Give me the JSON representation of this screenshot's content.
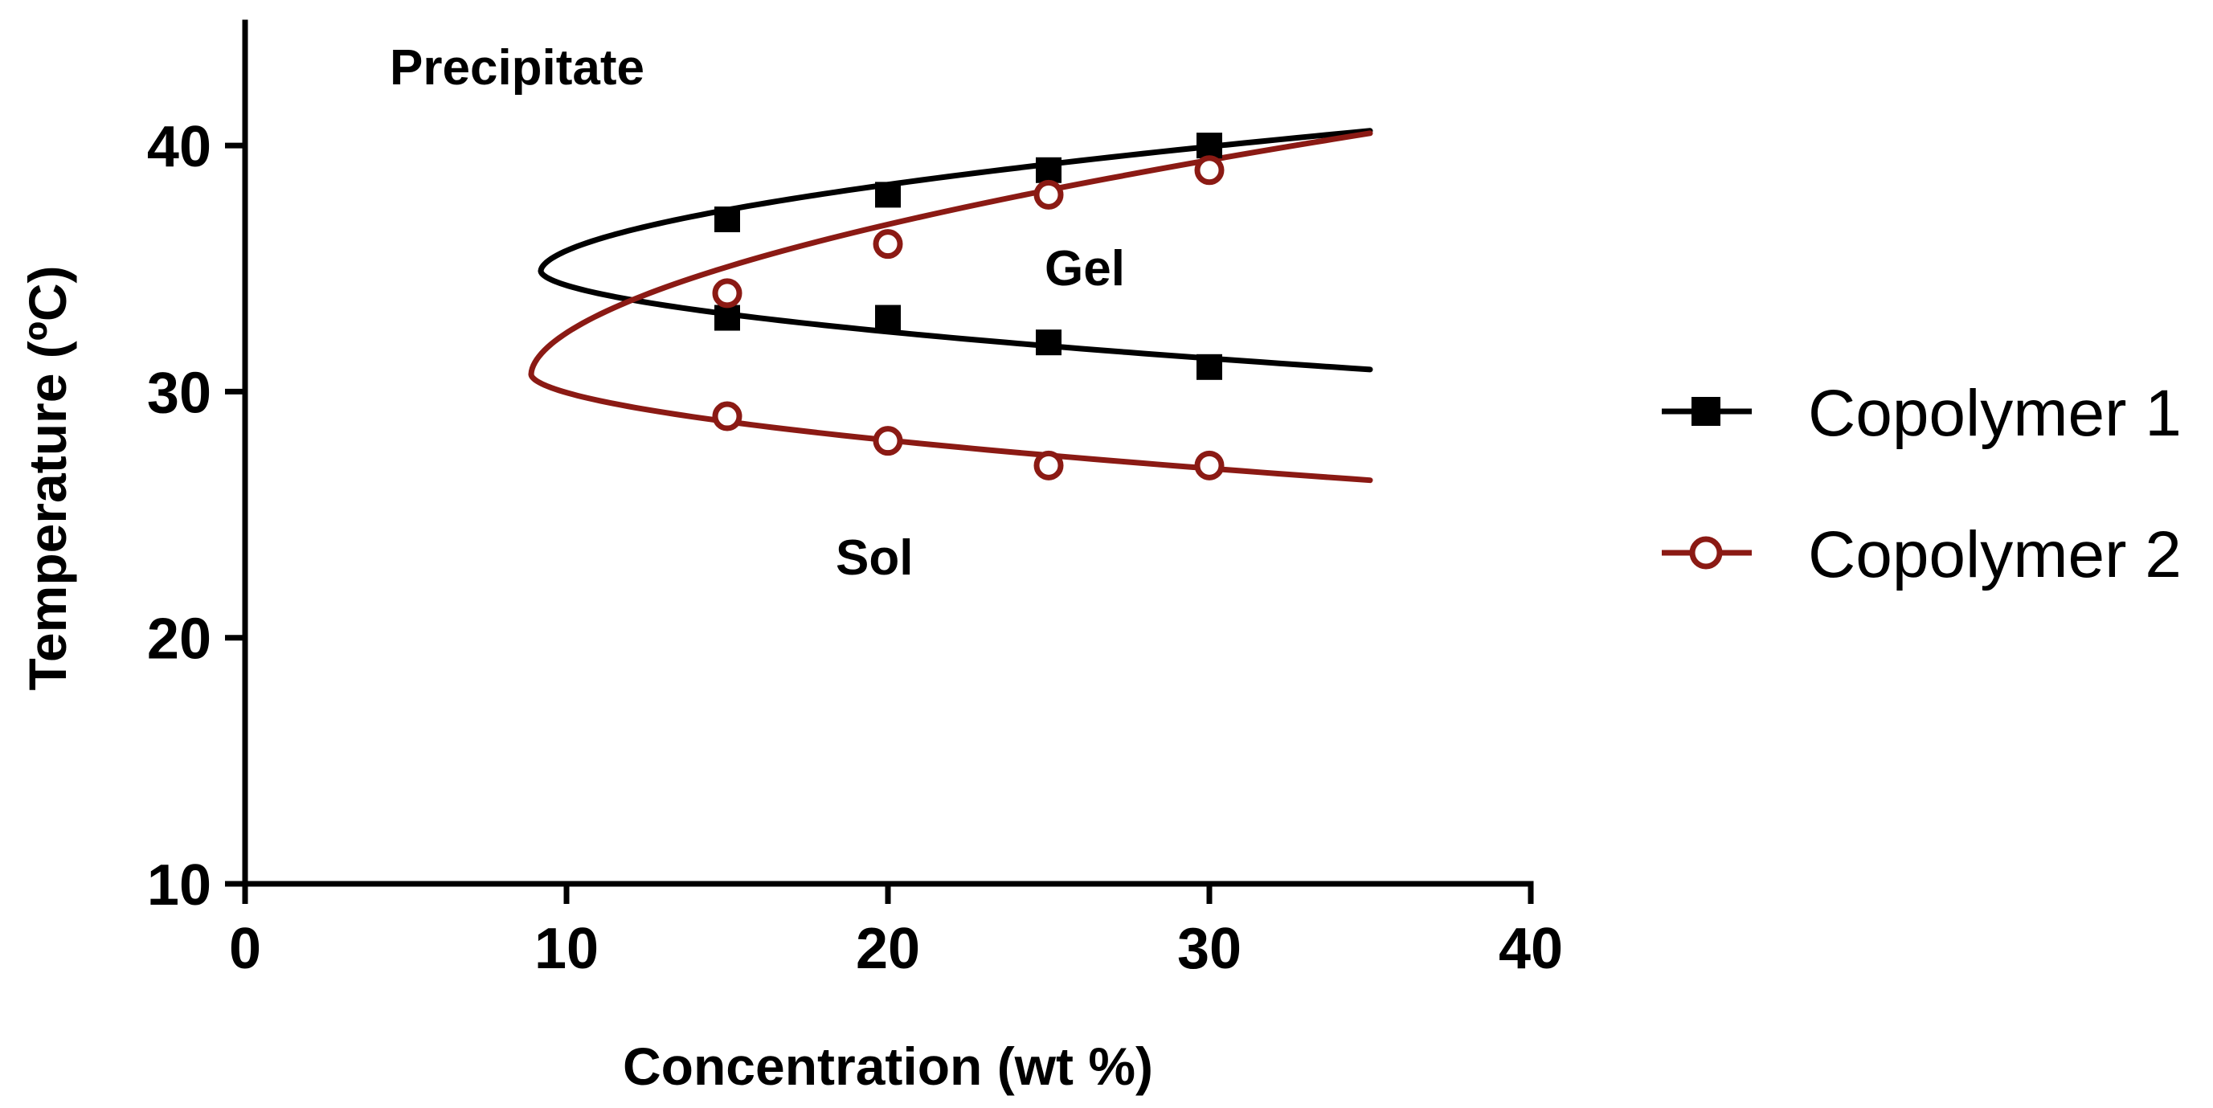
{
  "chart_data": {
    "type": "line",
    "title": "",
    "xlabel": "Concentration (wt %)",
    "ylabel": "Temperature (ºC)",
    "xlim": [
      0,
      40
    ],
    "ylim": [
      10,
      45
    ],
    "xticks": [
      0,
      10,
      20,
      30,
      40
    ],
    "yticks": [
      10,
      20,
      30,
      40
    ],
    "xtick_labels": [
      "0",
      "10",
      "20",
      "30",
      "40"
    ],
    "ytick_labels": [
      "10",
      "20",
      "30",
      "40"
    ],
    "grid": false,
    "legend_position": "right",
    "annotations": [
      {
        "id": "precipitate",
        "text": "Precipitate",
        "x": 9,
        "y": 43.1
      },
      {
        "id": "gel",
        "text": "Gel",
        "x": 26,
        "y": 35
      },
      {
        "id": "sol",
        "text": "Sol",
        "x": 19.5,
        "y": 25
      }
    ],
    "series": [
      {
        "name": "Copolymer 1",
        "color": "#000000",
        "marker": "filled-square",
        "points": [
          {
            "x": 15,
            "y": 37
          },
          {
            "x": 20,
            "y": 38
          },
          {
            "x": 25,
            "y": 39
          },
          {
            "x": 30,
            "y": 40
          },
          {
            "x": 15,
            "y": 33
          },
          {
            "x": 20,
            "y": 33
          },
          {
            "x": 25,
            "y": 32
          },
          {
            "x": 30,
            "y": 31
          }
        ],
        "fit": {
          "vertex": {
            "x": 9.2,
            "y": 34.9
          },
          "upper_end": {
            "x": 35,
            "y": 40.6
          },
          "lower_end": {
            "x": 35,
            "y": 30.9
          }
        }
      },
      {
        "name": "Copolymer 2",
        "color": "#8b1a14",
        "marker": "open-circle",
        "points": [
          {
            "x": 15,
            "y": 34
          },
          {
            "x": 20,
            "y": 36
          },
          {
            "x": 25,
            "y": 38
          },
          {
            "x": 30,
            "y": 39
          },
          {
            "x": 15,
            "y": 29
          },
          {
            "x": 20,
            "y": 28
          },
          {
            "x": 25,
            "y": 27
          },
          {
            "x": 30,
            "y": 27
          }
        ],
        "fit": {
          "vertex": {
            "x": 8.9,
            "y": 30.7
          },
          "upper_end": {
            "x": 35,
            "y": 40.5
          },
          "lower_end": {
            "x": 35,
            "y": 26.4
          }
        }
      }
    ]
  }
}
